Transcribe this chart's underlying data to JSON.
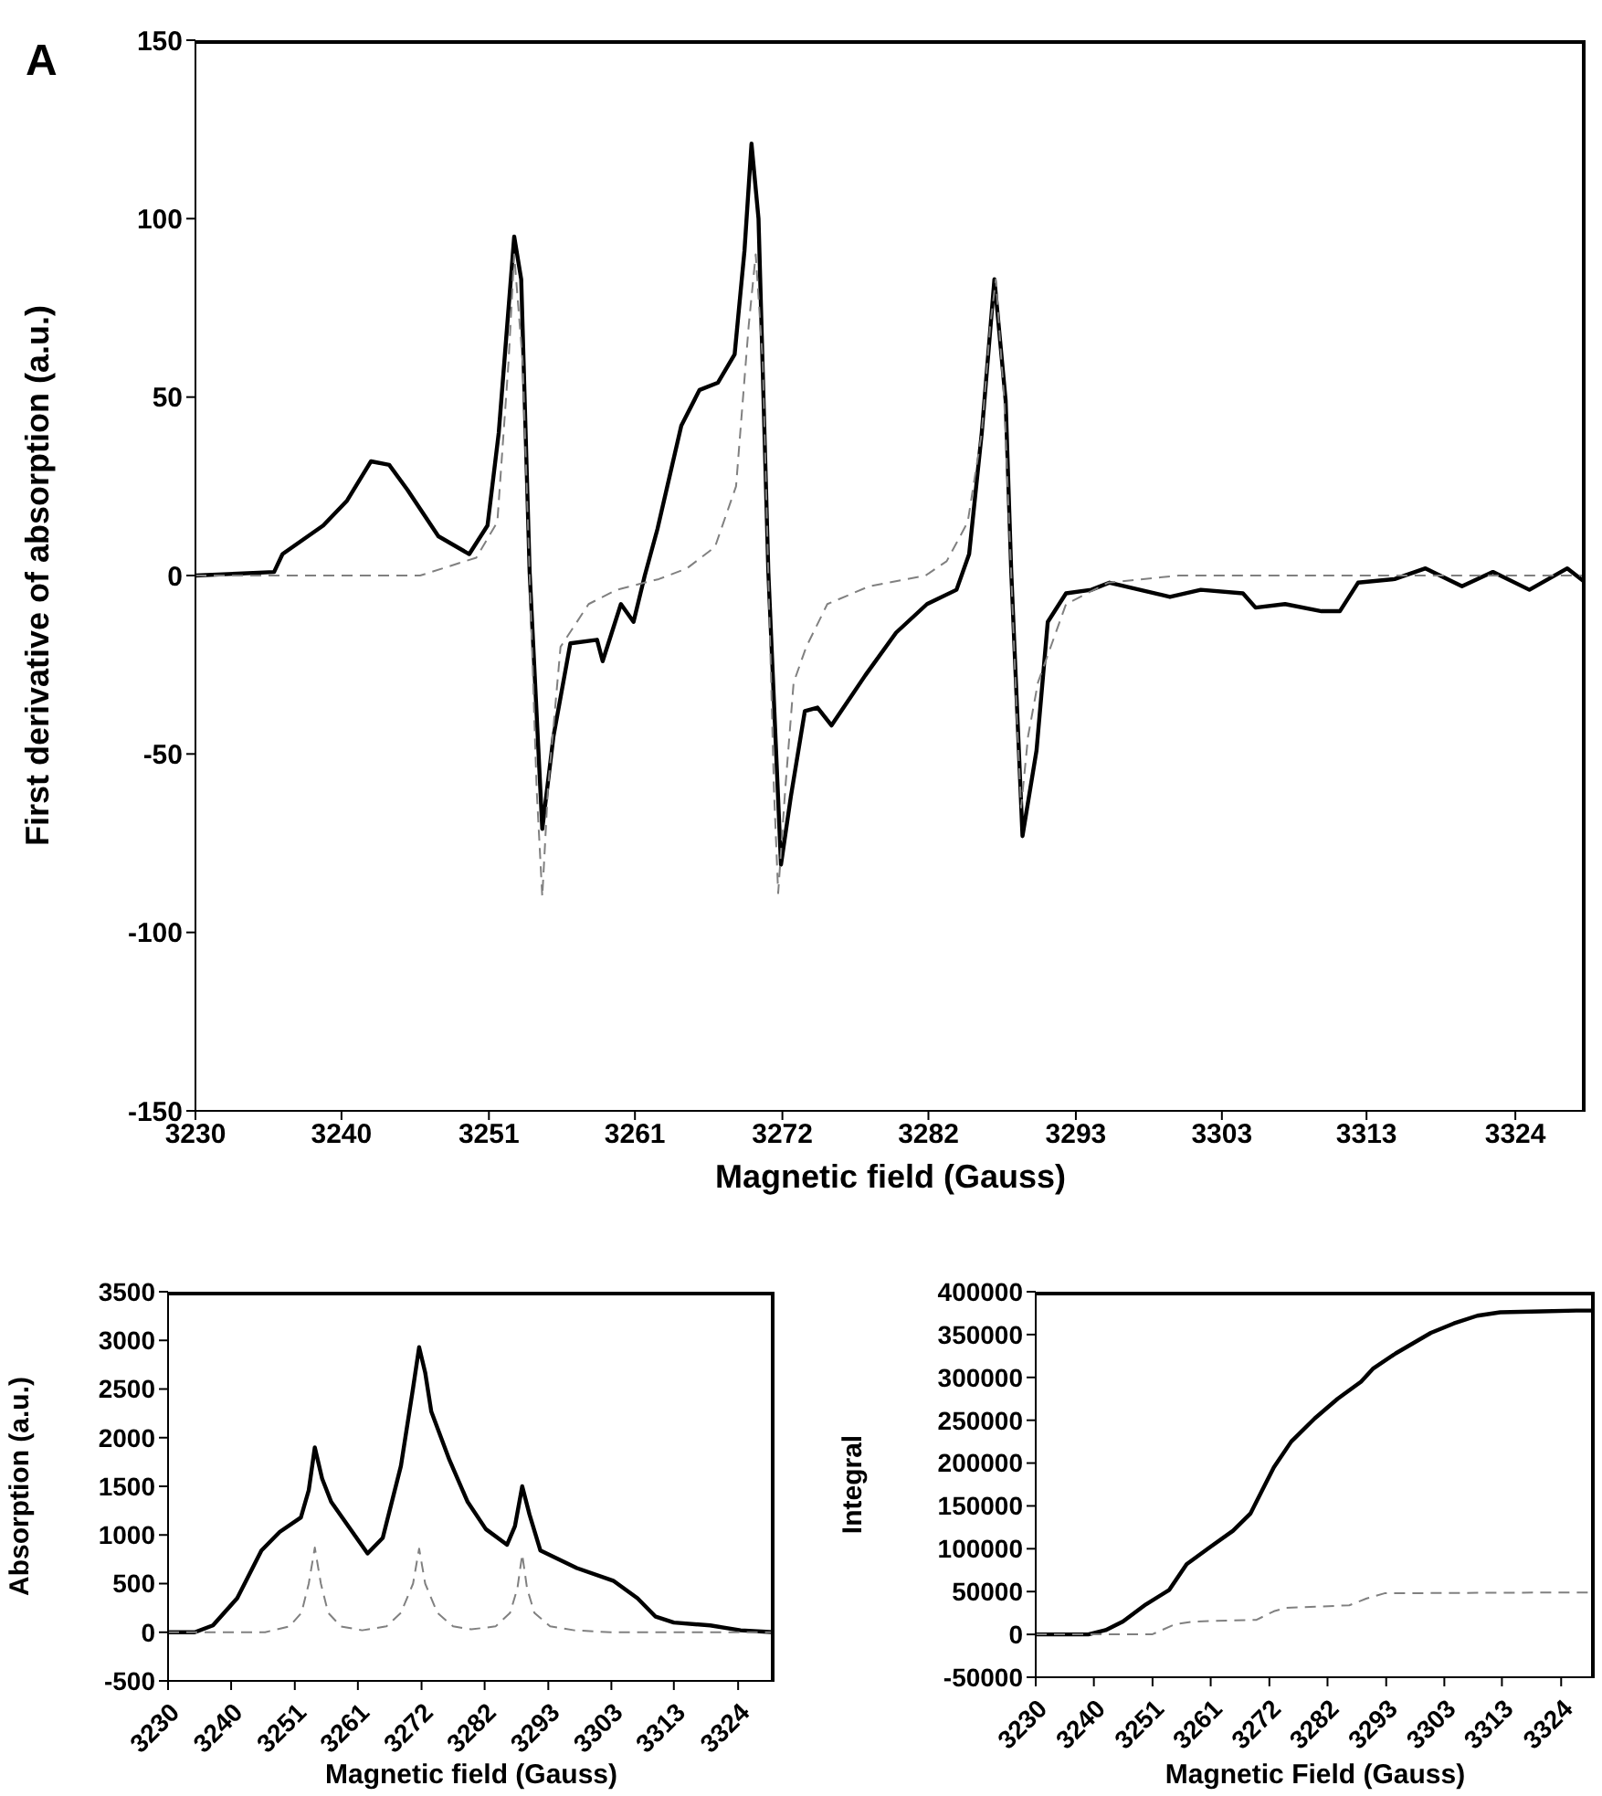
{
  "chart_data": [
    {
      "type": "line",
      "annotations": [
        "A"
      ],
      "xlabel": "Magnetic field (Gauss)",
      "ylabel": "First derivative of absorption (a.u.)",
      "xlim": [
        3230,
        3329
      ],
      "xticks": [
        {
          "value": 3230,
          "label": "3230"
        },
        {
          "value": 3240.4,
          "label": "3240"
        },
        {
          "value": 3250.9,
          "label": "3251"
        },
        {
          "value": 3261.3,
          "label": "3261"
        },
        {
          "value": 3271.8,
          "label": "3272"
        },
        {
          "value": 3282.2,
          "label": "3282"
        },
        {
          "value": 3292.7,
          "label": "3293"
        },
        {
          "value": 3303.1,
          "label": "3303"
        },
        {
          "value": 3313.4,
          "label": "3313"
        },
        {
          "value": 3324,
          "label": "3324"
        }
      ],
      "ylim": [
        -150,
        150
      ],
      "yticks": [
        -150,
        -100,
        -50,
        0,
        50,
        100,
        150
      ],
      "grid": false,
      "marker": "none",
      "series": [
        {
          "color": "#000000",
          "line_style": "solid",
          "x": [
            3230,
            3235.6,
            3236.2,
            3239.1,
            3240.8,
            3242.5,
            3243.8,
            3245.1,
            3247.3,
            3249.5,
            3250.8,
            3251.6,
            3252.7,
            3253.2,
            3253.8,
            3254.7,
            3255.5,
            3256.7,
            3258.6,
            3259.0,
            3260.3,
            3261.2,
            3262.0,
            3262.9,
            3264.6,
            3265.9,
            3267.2,
            3268.4,
            3269.1,
            3269.6,
            3270.1,
            3270.8,
            3271.7,
            3272.4,
            3273.4,
            3274.3,
            3275.3,
            3277.7,
            3279.9,
            3282.1,
            3284.2,
            3285.1,
            3286.0,
            3286.9,
            3287.7,
            3288.1,
            3288.9,
            3289.9,
            3290.7,
            3292.0,
            3293.8,
            3295.1,
            3299.4,
            3301.6,
            3304.6,
            3305.5,
            3307.6,
            3310.2,
            3311.5,
            3312.8,
            3315.4,
            3317.6,
            3320.2,
            3322.4,
            3325.0,
            3327.7,
            3329.0
          ],
          "values": [
            0,
            1,
            6,
            14,
            21,
            32,
            31,
            24,
            11,
            6,
            14,
            40,
            95,
            83,
            1,
            -71,
            -45,
            -19,
            -18,
            -24,
            -8,
            -13,
            0,
            13,
            42,
            52,
            54,
            62,
            91,
            121,
            100,
            1,
            -81,
            -62,
            -38,
            -37,
            -42,
            -28,
            -16,
            -8,
            -4,
            6,
            40,
            83,
            49,
            1,
            -73,
            -49,
            -13,
            -5,
            -4,
            -2,
            -6,
            -4,
            -5,
            -9,
            -8,
            -10,
            -10,
            -2,
            -1,
            2,
            -3,
            1,
            -4,
            2,
            -2
          ]
        },
        {
          "color": "#808080",
          "line_style": "dashed",
          "x": [
            3230,
            3246,
            3250,
            3251.5,
            3252.3,
            3252.7,
            3253.3,
            3253.8,
            3254.3,
            3254.7,
            3255.1,
            3256,
            3258,
            3260,
            3263,
            3265,
            3267,
            3268.5,
            3269.4,
            3269.9,
            3270.4,
            3270.8,
            3271.2,
            3271.5,
            3272.0,
            3272.6,
            3273.5,
            3275,
            3278,
            3282,
            3283.5,
            3285,
            3286,
            3286.6,
            3287.0,
            3287.6,
            3288.1,
            3288.5,
            3288.8,
            3289.3,
            3290,
            3292,
            3295,
            3300,
            3329
          ],
          "values": [
            0,
            0,
            5,
            15,
            60,
            90,
            60,
            0,
            -60,
            -90,
            -60,
            -20,
            -8,
            -4,
            -1,
            2,
            8,
            25,
            70,
            90,
            60,
            0,
            -60,
            -89,
            -60,
            -30,
            -20,
            -8,
            -3,
            0,
            4,
            15,
            40,
            70,
            83,
            49,
            0,
            -40,
            -65,
            -45,
            -30,
            -8,
            -2,
            0,
            0
          ]
        }
      ]
    },
    {
      "type": "line",
      "xlabel": "Magnetic field (Gauss)",
      "ylabel": "Absorption (a.u.)",
      "xlim": [
        3230,
        3330
      ],
      "xticks": [
        {
          "value": 3230,
          "label": "3230"
        },
        {
          "value": 3240.4,
          "label": "3240"
        },
        {
          "value": 3250.9,
          "label": "3251"
        },
        {
          "value": 3261.3,
          "label": "3261"
        },
        {
          "value": 3271.8,
          "label": "3272"
        },
        {
          "value": 3282.2,
          "label": "3282"
        },
        {
          "value": 3292.7,
          "label": "3293"
        },
        {
          "value": 3303.1,
          "label": "3303"
        },
        {
          "value": 3313.4,
          "label": "3313"
        },
        {
          "value": 3324,
          "label": "3324"
        }
      ],
      "ylim": [
        -500,
        3500
      ],
      "yticks": [
        -500,
        0,
        500,
        1000,
        1500,
        2000,
        2500,
        3000,
        3500
      ],
      "grid": false,
      "marker": "none",
      "series": [
        {
          "color": "#000000",
          "line_style": "solid",
          "x": [
            3230,
            3234.4,
            3237.4,
            3241.4,
            3245.4,
            3248.4,
            3251.9,
            3253.2,
            3254.2,
            3255.4,
            3256.9,
            3260.4,
            3262.9,
            3265.4,
            3268.4,
            3270.4,
            3271.4,
            3272.4,
            3273.4,
            3276.4,
            3279.4,
            3282.4,
            3285.9,
            3287.2,
            3288.4,
            3289.6,
            3291.4,
            3297.4,
            3303.4,
            3307.4,
            3310.4,
            3313.4,
            3319.4,
            3324.4,
            3330
          ],
          "values": [
            0,
            0,
            70,
            350,
            840,
            1030,
            1180,
            1460,
            1900,
            1580,
            1340,
            1030,
            810,
            970,
            1710,
            2510,
            2930,
            2670,
            2270,
            1770,
            1340,
            1060,
            900,
            1090,
            1500,
            1210,
            840,
            660,
            530,
            350,
            160,
            100,
            70,
            20,
            0
          ]
        },
        {
          "color": "#808080",
          "line_style": "dashed",
          "x": [
            3230,
            3246,
            3250,
            3252,
            3253.2,
            3254.2,
            3255.2,
            3256.4,
            3258.5,
            3262,
            3266,
            3268.4,
            3270.4,
            3271.4,
            3272.4,
            3274.4,
            3277,
            3280,
            3284,
            3286.4,
            3287.6,
            3288.4,
            3289.2,
            3290.4,
            3293,
            3297,
            3303,
            3330
          ],
          "values": [
            0,
            0,
            60,
            200,
            500,
            870,
            500,
            200,
            60,
            20,
            60,
            200,
            500,
            860,
            500,
            200,
            60,
            30,
            60,
            200,
            450,
            800,
            450,
            200,
            60,
            20,
            0,
            0
          ]
        }
      ]
    },
    {
      "type": "line",
      "xlabel": "Magnetic Field (Gauss)",
      "ylabel": "Integral",
      "xlim": [
        3230,
        3330
      ],
      "xticks": [
        {
          "value": 3230,
          "label": "3230"
        },
        {
          "value": 3240.4,
          "label": "3240"
        },
        {
          "value": 3250.9,
          "label": "3251"
        },
        {
          "value": 3261.3,
          "label": "3261"
        },
        {
          "value": 3271.8,
          "label": "3272"
        },
        {
          "value": 3282.2,
          "label": "3282"
        },
        {
          "value": 3292.7,
          "label": "3293"
        },
        {
          "value": 3303.1,
          "label": "3303"
        },
        {
          "value": 3313.4,
          "label": "3313"
        },
        {
          "value": 3324,
          "label": "3324"
        }
      ],
      "ylim": [
        -50000,
        400000
      ],
      "yticks": [
        -50000,
        0,
        50000,
        100000,
        150000,
        200000,
        250000,
        300000,
        350000,
        400000
      ],
      "grid": false,
      "marker": "none",
      "series": [
        {
          "color": "#000000",
          "line_style": "solid",
          "x": [
            3230,
            3239.4,
            3242.5,
            3245.6,
            3249.7,
            3253.9,
            3257,
            3261.2,
            3265.3,
            3268.4,
            3270.5,
            3272.6,
            3275.7,
            3279.9,
            3284,
            3288.2,
            3290.3,
            3294.4,
            3300.7,
            3304.8,
            3309,
            3313.1,
            3320.4,
            3326.7,
            3330
          ],
          "values": [
            0,
            0,
            5000,
            15000,
            35000,
            52000,
            82000,
            102000,
            121000,
            141000,
            168000,
            195000,
            225000,
            252000,
            275000,
            295000,
            310000,
            328000,
            352000,
            363000,
            372000,
            376000,
            377000,
            378000,
            378000
          ]
        },
        {
          "color": "#808080",
          "line_style": "dashed",
          "x": [
            3230,
            3250.8,
            3255,
            3258.1,
            3269.5,
            3272.6,
            3274.7,
            3286.1,
            3289.2,
            3292.4,
            3325.6,
            3330
          ],
          "values": [
            0,
            0,
            12000,
            15000,
            17000,
            27000,
            31000,
            34000,
            42000,
            48000,
            49000,
            49000
          ]
        }
      ]
    }
  ]
}
